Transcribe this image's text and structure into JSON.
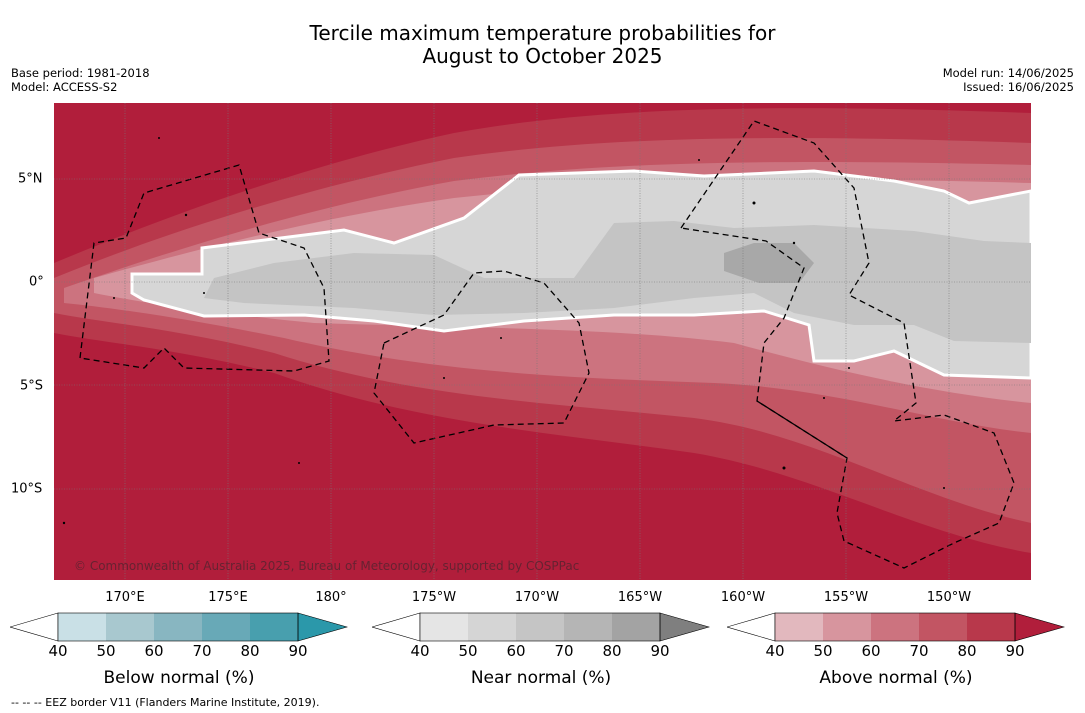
{
  "title": {
    "line1": "Tercile maximum temperature probabilities for",
    "line2": "August to October 2025"
  },
  "meta": {
    "base_period": "Base period: 1981-2018",
    "model": "Model: ACCESS-S2",
    "model_run": "Model run: 14/06/2025",
    "issued": "Issued: 16/06/2025"
  },
  "map": {
    "lat_labels": [
      "5°N",
      "0°",
      "5°S",
      "10°S"
    ],
    "lon_labels": [
      "170°E",
      "175°E",
      "180°",
      "175°W",
      "170°W",
      "165°W",
      "160°W",
      "155°W",
      "150°W"
    ],
    "copyright": "© Commonwealth of Australia 2025, Bureau of Meteorology, supported by COSPPac"
  },
  "colorbars": [
    {
      "label": "Below normal (%)",
      "ticks": [
        "40",
        "50",
        "60",
        "70",
        "80",
        "90"
      ],
      "colors": [
        "#ffffff",
        "#c9e0e6",
        "#a8c8cf",
        "#88b6c1",
        "#68a9b7",
        "#489fae",
        "#2b98aa"
      ]
    },
    {
      "label": "Near normal (%)",
      "ticks": [
        "40",
        "50",
        "60",
        "70",
        "80",
        "90"
      ],
      "colors": [
        "#ffffff",
        "#e5e5e5",
        "#d5d5d5",
        "#c5c5c5",
        "#b5b5b5",
        "#a3a3a3",
        "#7f7f7f"
      ]
    },
    {
      "label": "Above normal (%)",
      "ticks": [
        "40",
        "50",
        "60",
        "70",
        "80",
        "90"
      ],
      "colors": [
        "#ffffff",
        "#e2b8be",
        "#d7959e",
        "#cc737f",
        "#c25563",
        "#b8384b",
        "#b11e3b"
      ]
    }
  ],
  "footnote": "--  --  -- EEZ border V11 (Flanders Marine Institute, 2019)."
}
